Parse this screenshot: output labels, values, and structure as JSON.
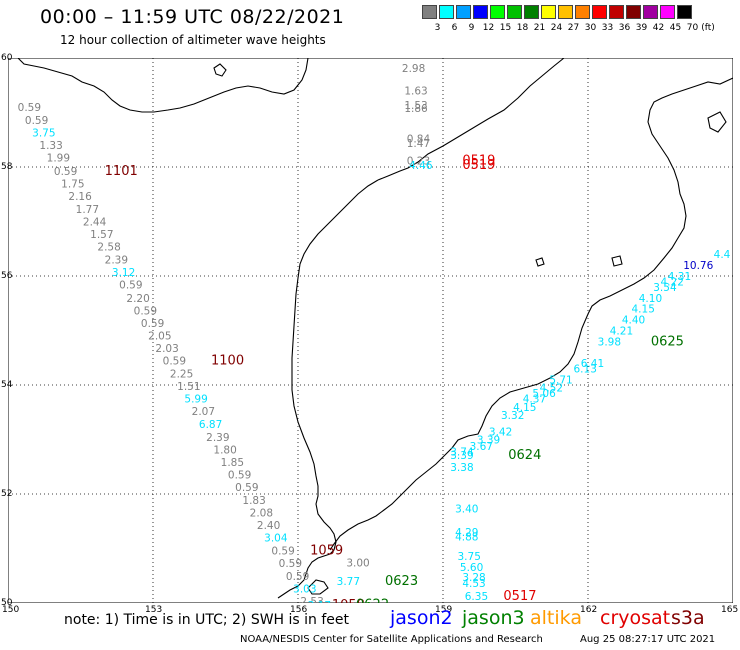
{
  "header": {
    "title": "00:00 – 11:59 UTC 08/22/2021",
    "subtitle": "12 hour collection of altimeter wave heights"
  },
  "legend": {
    "unit": "(ft)",
    "items": [
      {
        "label": "3",
        "color": "#808080"
      },
      {
        "label": "6",
        "color": "#00ffff"
      },
      {
        "label": "9",
        "color": "#00a0ff"
      },
      {
        "label": "12",
        "color": "#0000ff"
      },
      {
        "label": "15",
        "color": "#00ff00"
      },
      {
        "label": "18",
        "color": "#00c000"
      },
      {
        "label": "21",
        "color": "#008000"
      },
      {
        "label": "24",
        "color": "#ffff00"
      },
      {
        "label": "27",
        "color": "#ffc000"
      },
      {
        "label": "30",
        "color": "#ff8000"
      },
      {
        "label": "33",
        "color": "#ff0000"
      },
      {
        "label": "36",
        "color": "#c00000"
      },
      {
        "label": "39",
        "color": "#800000"
      },
      {
        "label": "42",
        "color": "#a000a0"
      },
      {
        "label": "45",
        "color": "#ff00ff"
      },
      {
        "label": "70",
        "color": "#000000"
      }
    ]
  },
  "map": {
    "lon_ticks": [
      "150",
      "153",
      "156",
      "159",
      "162",
      "165"
    ],
    "lat_ticks": [
      "60",
      "58",
      "56",
      "54",
      "52",
      "50"
    ],
    "lon_range": [
      150,
      165
    ],
    "lat_range": [
      50,
      60
    ],
    "colors": {
      "gray": "#808080",
      "cyan": "#00e0ff",
      "blue": "#0000c8",
      "darkred": "#800000",
      "red": "#e00000",
      "green": "#007000"
    }
  },
  "observations": [
    {
      "t": "0.59",
      "lon": 150.2,
      "lat": 59.1,
      "c": "gray"
    },
    {
      "t": "0.59",
      "lon": 150.35,
      "lat": 58.86,
      "c": "gray"
    },
    {
      "t": "3.75",
      "lon": 150.5,
      "lat": 58.63,
      "c": "cyan"
    },
    {
      "t": "1.33",
      "lon": 150.65,
      "lat": 58.4,
      "c": "gray"
    },
    {
      "t": "1.99",
      "lon": 150.8,
      "lat": 58.17,
      "c": "gray"
    },
    {
      "t": "0.59",
      "lon": 150.95,
      "lat": 57.93,
      "c": "gray"
    },
    {
      "t": "1101",
      "lon": 152.0,
      "lat": 57.93,
      "c": "darkred",
      "big": true
    },
    {
      "t": "1.75",
      "lon": 151.1,
      "lat": 57.7,
      "c": "gray"
    },
    {
      "t": "2.16",
      "lon": 151.25,
      "lat": 57.47,
      "c": "gray"
    },
    {
      "t": "1.77",
      "lon": 151.4,
      "lat": 57.23,
      "c": "gray"
    },
    {
      "t": "2.44",
      "lon": 151.55,
      "lat": 57.0,
      "c": "gray"
    },
    {
      "t": "1.57",
      "lon": 151.7,
      "lat": 56.77,
      "c": "gray"
    },
    {
      "t": "2.58",
      "lon": 151.85,
      "lat": 56.54,
      "c": "gray"
    },
    {
      "t": "2.39",
      "lon": 152.0,
      "lat": 56.3,
      "c": "gray"
    },
    {
      "t": "3.12",
      "lon": 152.15,
      "lat": 56.07,
      "c": "cyan"
    },
    {
      "t": "0.59",
      "lon": 152.3,
      "lat": 55.84,
      "c": "gray"
    },
    {
      "t": "2.20",
      "lon": 152.45,
      "lat": 55.6,
      "c": "gray"
    },
    {
      "t": "0.59",
      "lon": 152.6,
      "lat": 55.37,
      "c": "gray"
    },
    {
      "t": "0.59",
      "lon": 152.75,
      "lat": 55.14,
      "c": "gray"
    },
    {
      "t": "2.05",
      "lon": 152.9,
      "lat": 54.91,
      "c": "gray"
    },
    {
      "t": "2.03",
      "lon": 153.05,
      "lat": 54.68,
      "c": "gray"
    },
    {
      "t": "0.59",
      "lon": 153.2,
      "lat": 54.45,
      "c": "gray"
    },
    {
      "t": "1100",
      "lon": 154.2,
      "lat": 54.45,
      "c": "darkred",
      "big": true
    },
    {
      "t": "2.25",
      "lon": 153.35,
      "lat": 54.21,
      "c": "gray"
    },
    {
      "t": "1.51",
      "lon": 153.5,
      "lat": 53.98,
      "c": "gray"
    },
    {
      "t": "5.99",
      "lon": 153.65,
      "lat": 53.75,
      "c": "cyan"
    },
    {
      "t": "2.07",
      "lon": 153.8,
      "lat": 53.52,
      "c": "gray"
    },
    {
      "t": "6.87",
      "lon": 153.95,
      "lat": 53.28,
      "c": "cyan"
    },
    {
      "t": "2.39",
      "lon": 154.1,
      "lat": 53.05,
      "c": "gray"
    },
    {
      "t": "1.80",
      "lon": 154.25,
      "lat": 52.82,
      "c": "gray"
    },
    {
      "t": "1.85",
      "lon": 154.4,
      "lat": 52.59,
      "c": "gray"
    },
    {
      "t": "0.59",
      "lon": 154.55,
      "lat": 52.36,
      "c": "gray"
    },
    {
      "t": "0.59",
      "lon": 154.7,
      "lat": 52.13,
      "c": "gray"
    },
    {
      "t": "1.83",
      "lon": 154.85,
      "lat": 51.89,
      "c": "gray"
    },
    {
      "t": "2.08",
      "lon": 155.0,
      "lat": 51.66,
      "c": "gray"
    },
    {
      "t": "2.40",
      "lon": 155.15,
      "lat": 51.43,
      "c": "gray"
    },
    {
      "t": "3.04",
      "lon": 155.3,
      "lat": 51.2,
      "c": "cyan"
    },
    {
      "t": "0.59",
      "lon": 155.45,
      "lat": 50.96,
      "c": "gray"
    },
    {
      "t": "1059",
      "lon": 156.25,
      "lat": 50.96,
      "c": "darkred",
      "big": true
    },
    {
      "t": "0.59",
      "lon": 155.6,
      "lat": 50.73,
      "c": "gray"
    },
    {
      "t": "0.59",
      "lon": 155.75,
      "lat": 50.5,
      "c": "gray"
    },
    {
      "t": "3.03",
      "lon": 155.9,
      "lat": 50.27,
      "c": "cyan"
    },
    {
      "t": "2.53",
      "lon": 156.05,
      "lat": 50.04,
      "c": "gray"
    },
    {
      "t": "3.17",
      "lon": 156.2,
      "lat": 49.96,
      "c": "cyan"
    },
    {
      "t": "1058",
      "lon": 156.7,
      "lat": 49.96,
      "c": "darkred",
      "big": true
    },
    {
      "t": "2.98",
      "lon": 158.15,
      "lat": 59.82,
      "c": "gray"
    },
    {
      "t": "1.63",
      "lon": 158.2,
      "lat": 59.4,
      "c": "gray"
    },
    {
      "t": "1.53",
      "lon": 158.2,
      "lat": 59.14,
      "c": "gray"
    },
    {
      "t": "1.86",
      "lon": 158.2,
      "lat": 59.08,
      "c": "gray"
    },
    {
      "t": "0.84",
      "lon": 158.25,
      "lat": 58.52,
      "c": "gray"
    },
    {
      "t": "1.47",
      "lon": 158.25,
      "lat": 58.44,
      "c": "gray"
    },
    {
      "t": "0.23",
      "lon": 158.25,
      "lat": 58.12,
      "c": "gray"
    },
    {
      "t": "4.46",
      "lon": 158.3,
      "lat": 58.04,
      "c": "cyan"
    },
    {
      "t": "0519",
      "lon": 159.4,
      "lat": 58.12,
      "c": "red",
      "big": true
    },
    {
      "t": "0519",
      "lon": 159.4,
      "lat": 58.04,
      "c": "red",
      "big": true
    },
    {
      "t": "10.76",
      "lon": 163.97,
      "lat": 56.2,
      "c": "blue"
    },
    {
      "t": "4.4",
      "lon": 164.6,
      "lat": 56.4,
      "c": "cyan"
    },
    {
      "t": "4.31",
      "lon": 163.65,
      "lat": 56.0,
      "c": "cyan"
    },
    {
      "t": "4.22",
      "lon": 163.5,
      "lat": 55.9,
      "c": "cyan"
    },
    {
      "t": "3.54",
      "lon": 163.35,
      "lat": 55.8,
      "c": "cyan"
    },
    {
      "t": "4.10",
      "lon": 163.05,
      "lat": 55.6,
      "c": "cyan"
    },
    {
      "t": "4.15",
      "lon": 162.9,
      "lat": 55.4,
      "c": "cyan"
    },
    {
      "t": "4.40",
      "lon": 162.7,
      "lat": 55.2,
      "c": "cyan"
    },
    {
      "t": "4.21",
      "lon": 162.45,
      "lat": 55.0,
      "c": "cyan"
    },
    {
      "t": "3.98",
      "lon": 162.2,
      "lat": 54.8,
      "c": "cyan"
    },
    {
      "t": "0625",
      "lon": 163.3,
      "lat": 54.8,
      "c": "green",
      "big": true
    },
    {
      "t": "6.41",
      "lon": 161.85,
      "lat": 54.4,
      "c": "cyan"
    },
    {
      "t": "6.13",
      "lon": 161.7,
      "lat": 54.3,
      "c": "cyan"
    },
    {
      "t": "5.71",
      "lon": 161.2,
      "lat": 54.1,
      "c": "cyan"
    },
    {
      "t": "4.52",
      "lon": 161.0,
      "lat": 53.95,
      "c": "cyan"
    },
    {
      "t": "5.06",
      "lon": 160.85,
      "lat": 53.85,
      "c": "cyan"
    },
    {
      "t": "4.37",
      "lon": 160.65,
      "lat": 53.75,
      "c": "cyan"
    },
    {
      "t": "4.15",
      "lon": 160.45,
      "lat": 53.6,
      "c": "cyan"
    },
    {
      "t": "3.32",
      "lon": 160.2,
      "lat": 53.45,
      "c": "cyan"
    },
    {
      "t": "3.42",
      "lon": 159.95,
      "lat": 53.15,
      "c": "cyan"
    },
    {
      "t": "3.39",
      "lon": 159.7,
      "lat": 53.0,
      "c": "cyan"
    },
    {
      "t": "3.67",
      "lon": 159.55,
      "lat": 52.88,
      "c": "cyan"
    },
    {
      "t": "3.74",
      "lon": 159.15,
      "lat": 52.78,
      "c": "cyan"
    },
    {
      "t": "3.39",
      "lon": 159.15,
      "lat": 52.72,
      "c": "cyan"
    },
    {
      "t": "3.38",
      "lon": 159.15,
      "lat": 52.5,
      "c": "cyan"
    },
    {
      "t": "0624",
      "lon": 160.35,
      "lat": 52.72,
      "c": "green",
      "big": true
    },
    {
      "t": "3.40",
      "lon": 159.25,
      "lat": 51.73,
      "c": "cyan"
    },
    {
      "t": "4.29",
      "lon": 159.25,
      "lat": 51.3,
      "c": "cyan"
    },
    {
      "t": "4.88",
      "lon": 159.25,
      "lat": 51.22,
      "c": "cyan"
    },
    {
      "t": "3.75",
      "lon": 159.3,
      "lat": 50.86,
      "c": "cyan"
    },
    {
      "t": "5.60",
      "lon": 159.35,
      "lat": 50.66,
      "c": "cyan"
    },
    {
      "t": "3.28",
      "lon": 159.4,
      "lat": 50.48,
      "c": "cyan"
    },
    {
      "t": "4.53",
      "lon": 159.4,
      "lat": 50.37,
      "c": "cyan"
    },
    {
      "t": "6.35",
      "lon": 159.45,
      "lat": 50.13,
      "c": "cyan"
    },
    {
      "t": "0517",
      "lon": 160.25,
      "lat": 50.13,
      "c": "red",
      "big": true
    },
    {
      "t": "3.00",
      "lon": 157.0,
      "lat": 50.74,
      "c": "gray"
    },
    {
      "t": "3.77",
      "lon": 156.8,
      "lat": 50.4,
      "c": "cyan"
    },
    {
      "t": "0623",
      "lon": 157.8,
      "lat": 50.4,
      "c": "green",
      "big": true
    },
    {
      "t": "0622",
      "lon": 157.2,
      "lat": 49.97,
      "c": "green",
      "big": true
    }
  ],
  "footer": {
    "note": "note:  1) Time is in UTC;  2) SWH is in feet",
    "satellites": [
      {
        "name": "jason2",
        "color": "#0000ff"
      },
      {
        "name": "jason3",
        "color": "#008000"
      },
      {
        "name": "altika",
        "color": "#ff9a00"
      },
      {
        "name": "cryosat",
        "color": "#e00000"
      },
      {
        "name": "s3a",
        "color": "#800000"
      }
    ],
    "credit": "NOAA/NESDIS Center for Satellite Applications and Research",
    "timestamp": "Aug 25 08:27:17 UTC 2021"
  }
}
